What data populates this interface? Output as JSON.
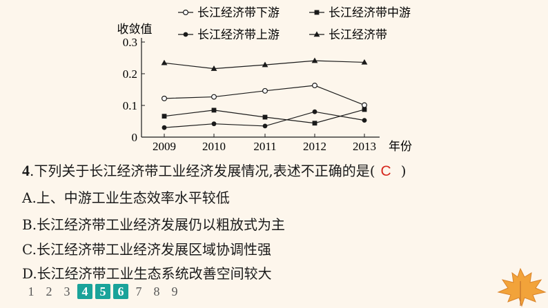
{
  "chart_data": {
    "type": "line",
    "ylabel": "收敛值",
    "xlabel": "年份",
    "categories": [
      "2009",
      "2010",
      "2011",
      "2012",
      "2013"
    ],
    "ylim": [
      0,
      0.3
    ],
    "yticks": [
      "0",
      "0.1",
      "0.2",
      "0.3"
    ],
    "legend_position": "top",
    "series": [
      {
        "name": "长江经济带下游",
        "marker": "open-circle",
        "values": [
          0.122,
          0.127,
          0.146,
          0.163,
          0.101
        ]
      },
      {
        "name": "长江经济带中游",
        "marker": "square",
        "values": [
          0.066,
          0.085,
          0.063,
          0.044,
          0.087
        ]
      },
      {
        "name": "长江经济带上游",
        "marker": "filled-circle",
        "values": [
          0.03,
          0.042,
          0.035,
          0.08,
          0.053
        ]
      },
      {
        "name": "长江经济带",
        "marker": "triangle",
        "values": [
          0.234,
          0.216,
          0.228,
          0.241,
          0.236
        ]
      }
    ]
  },
  "question": {
    "number": "4",
    "stem": ".下列关于长江经济带工业经济发展情况,表述不正确的是(",
    "answer": "C",
    "close": ")",
    "options": [
      "A.上、中游工业生态效率水平较低",
      "B.长江经济带工业经济发展仍以粗放式为主",
      "C.长江经济带工业经济发展区域协调性强",
      "D.长江经济带工业生态系统改善空间较大"
    ]
  },
  "pager": {
    "pages": [
      "1",
      "2",
      "3",
      "4",
      "5",
      "6",
      "7",
      "8",
      "9"
    ],
    "active": [
      "4",
      "5",
      "6"
    ]
  },
  "colors": {
    "accent": "#1aa39a",
    "answer": "#d6261c",
    "background": "#fdf6ec",
    "leaf": "#f2a33a"
  }
}
